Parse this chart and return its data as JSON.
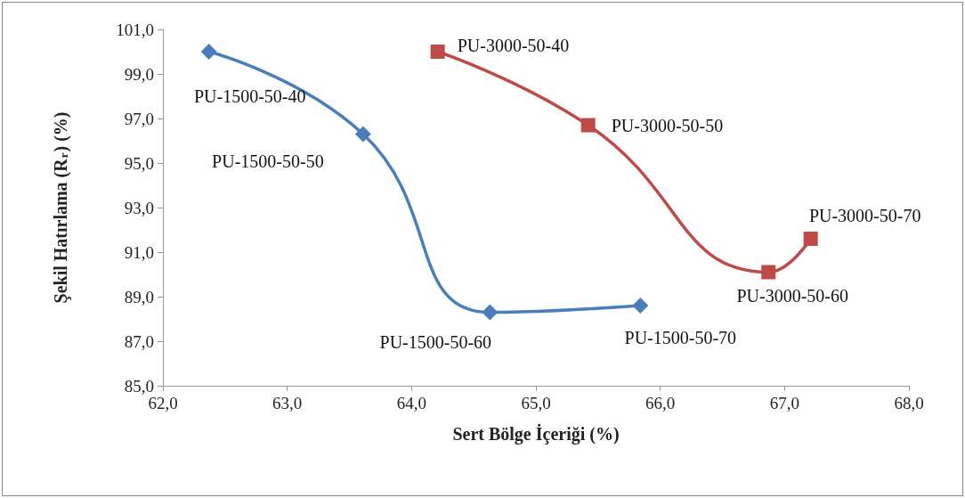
{
  "chart_data": {
    "type": "line",
    "xlabel": "Sert Bölge İçeriği (%)",
    "ylabel": "Şekil Hatırlama (R$_{r}$) (%)",
    "series": [
      {
        "color": "#4a7ebb",
        "marker": "diamond",
        "x": [
          62.37,
          63.61,
          64.63,
          65.84
        ],
        "values": [
          100.0,
          96.3,
          88.3,
          88.6
        ]
      },
      {
        "color": "#be4b48",
        "marker": "square",
        "x": [
          64.21,
          65.42,
          66.87,
          67.21
        ],
        "values": [
          100.0,
          96.7,
          90.1,
          91.6
        ]
      }
    ],
    "xlim": [
      62,
      68
    ],
    "xticks": [
      {
        "value": 62,
        "label": "62,0"
      },
      {
        "value": 63,
        "label": "63,0"
      },
      {
        "value": 64,
        "label": "64,0"
      },
      {
        "value": 65,
        "label": "65,0"
      },
      {
        "value": 66,
        "label": "66,0"
      },
      {
        "value": 67,
        "label": "67,0"
      },
      {
        "value": 68,
        "label": "68,0"
      }
    ],
    "ylim": [
      85,
      101
    ],
    "yticks": [
      {
        "value": 85,
        "label": "85,0"
      },
      {
        "value": 87,
        "label": "87,0"
      },
      {
        "value": 89,
        "label": "89,0"
      },
      {
        "value": 91,
        "label": "91,0"
      },
      {
        "value": 93,
        "label": "93,0"
      },
      {
        "value": 95,
        "label": "95,0"
      },
      {
        "value": 97,
        "label": "97,0"
      },
      {
        "value": 99,
        "label": "99,0"
      },
      {
        "value": 101,
        "label": "101,0"
      }
    ],
    "grid": false,
    "line_style": "solid",
    "annotations": [
      {
        "text": "PU-1500-50-40",
        "x": 62.37,
        "y": 100.0
      },
      {
        "text": "PU-1500-50-50",
        "x": 63.61,
        "y": 96.3
      },
      {
        "text": "PU-1500-50-60",
        "x": 64.63,
        "y": 88.3
      },
      {
        "text": "PU-1500-50-70",
        "x": 65.84,
        "y": 88.6
      },
      {
        "text": "PU-3000-50-40",
        "x": 64.21,
        "y": 100.0
      },
      {
        "text": "PU-3000-50-50",
        "x": 65.42,
        "y": 96.7
      },
      {
        "text": "PU-3000-50-60",
        "x": 66.87,
        "y": 90.1
      },
      {
        "text": "PU-3000-50-70",
        "x": 67.21,
        "y": 91.6
      }
    ]
  }
}
